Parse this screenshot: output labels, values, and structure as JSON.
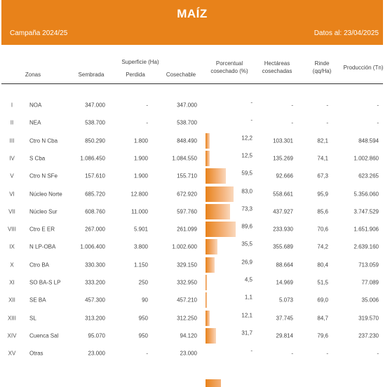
{
  "header": {
    "title": "MAÍZ",
    "campaign": "Campaña 2024/25",
    "date": "Datos al: 23/04/2025",
    "bg_color": "#e8821a"
  },
  "columns": {
    "zonas": "Zonas",
    "superficie": "Superficie (Ha)",
    "sembrada": "Sembrada",
    "perdida": "Perdida",
    "cosechable": "Cosechable",
    "porcentual_1": "Porcentual",
    "porcentual_2": "cosechado (%)",
    "hectareas_1": "Hectáreas",
    "hectareas_2": "cosechadas",
    "rinde_1": "Rinde",
    "rinde_2": "(qq/Ha)",
    "produccion": "Producción (Tn)"
  },
  "rows": [
    {
      "num": "I",
      "zone": "NOA",
      "sembrada": "347.000",
      "perdida": "-",
      "cosechable": "347.000",
      "pct": "-",
      "pct_value": 0,
      "hectareas": "-",
      "rinde": "-",
      "produccion": "-"
    },
    {
      "num": "II",
      "zone": "NEA",
      "sembrada": "538.700",
      "perdida": "-",
      "cosechable": "538.700",
      "pct": "-",
      "pct_value": 0,
      "hectareas": "-",
      "rinde": "-",
      "produccion": "-"
    },
    {
      "num": "III",
      "zone": "Ctro N Cba",
      "sembrada": "850.290",
      "perdida": "1.800",
      "cosechable": "848.490",
      "pct": "12,2",
      "pct_value": 12.2,
      "hectareas": "103.301",
      "rinde": "82,1",
      "produccion": "848.594"
    },
    {
      "num": "IV",
      "zone": "S Cba",
      "sembrada": "1.086.450",
      "perdida": "1.900",
      "cosechable": "1.084.550",
      "pct": "12,5",
      "pct_value": 12.5,
      "hectareas": "135.269",
      "rinde": "74,1",
      "produccion": "1.002.860"
    },
    {
      "num": "V",
      "zone": "Ctro N SFe",
      "sembrada": "157.610",
      "perdida": "1.900",
      "cosechable": "155.710",
      "pct": "59,5",
      "pct_value": 59.5,
      "hectareas": "92.666",
      "rinde": "67,3",
      "produccion": "623.265"
    },
    {
      "num": "VI",
      "zone": "Núcleo Norte",
      "sembrada": "685.720",
      "perdida": "12.800",
      "cosechable": "672.920",
      "pct": "83,0",
      "pct_value": 83.0,
      "hectareas": "558.661",
      "rinde": "95,9",
      "produccion": "5.356.060"
    },
    {
      "num": "VII",
      "zone": "Núcleo Sur",
      "sembrada": "608.760",
      "perdida": "11.000",
      "cosechable": "597.760",
      "pct": "73,3",
      "pct_value": 73.3,
      "hectareas": "437.927",
      "rinde": "85,6",
      "produccion": "3.747.529"
    },
    {
      "num": "VIII",
      "zone": "Ctro E ER",
      "sembrada": "267.000",
      "perdida": "5.901",
      "cosechable": "261.099",
      "pct": "89,6",
      "pct_value": 89.6,
      "hectareas": "233.930",
      "rinde": "70,6",
      "produccion": "1.651.906"
    },
    {
      "num": "IX",
      "zone": "N LP-OBA",
      "sembrada": "1.006.400",
      "perdida": "3.800",
      "cosechable": "1.002.600",
      "pct": "35,5",
      "pct_value": 35.5,
      "hectareas": "355.689",
      "rinde": "74,2",
      "produccion": "2.639.160"
    },
    {
      "num": "X",
      "zone": "Ctro BA",
      "sembrada": "330.300",
      "perdida": "1.150",
      "cosechable": "329.150",
      "pct": "26,9",
      "pct_value": 26.9,
      "hectareas": "88.664",
      "rinde": "80,4",
      "produccion": "713.059"
    },
    {
      "num": "XI",
      "zone": "SO BA-S LP",
      "sembrada": "333.200",
      "perdida": "250",
      "cosechable": "332.950",
      "pct": "4,5",
      "pct_value": 4.5,
      "hectareas": "14.969",
      "rinde": "51,5",
      "produccion": "77.089"
    },
    {
      "num": "XII",
      "zone": "SE BA",
      "sembrada": "457.300",
      "perdida": "90",
      "cosechable": "457.210",
      "pct": "1,1",
      "pct_value": 1.1,
      "hectareas": "5.073",
      "rinde": "69,0",
      "produccion": "35.006"
    },
    {
      "num": "XIII",
      "zone": "SL",
      "sembrada": "313.200",
      "perdida": "950",
      "cosechable": "312.250",
      "pct": "12,1",
      "pct_value": 12.1,
      "hectareas": "37.745",
      "rinde": "84,7",
      "produccion": "319.570"
    },
    {
      "num": "XIV",
      "zone": "Cuenca Sal",
      "sembrada": "95.070",
      "perdida": "950",
      "cosechable": "94.120",
      "pct": "31,7",
      "pct_value": 31.7,
      "hectareas": "29.814",
      "rinde": "79,6",
      "produccion": "237.230"
    },
    {
      "num": "XV",
      "zone": "Otras",
      "sembrada": "23.000",
      "perdida": "-",
      "cosechable": "23.000",
      "pct": "-",
      "pct_value": 0,
      "hectareas": "-",
      "rinde": "-",
      "produccion": "-"
    }
  ]
}
